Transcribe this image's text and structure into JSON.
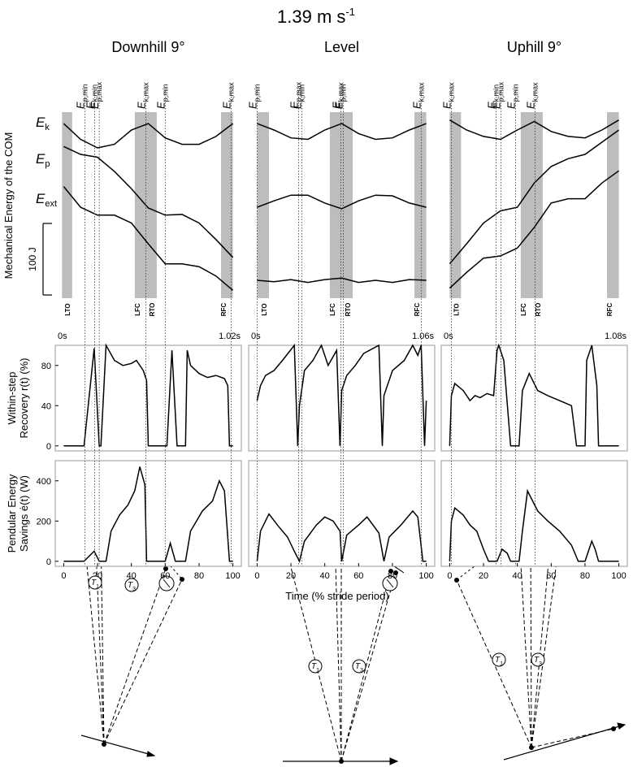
{
  "figure": {
    "title": {
      "text": "1.39 m s",
      "sup": "-1"
    },
    "y_label_energy": "Mechanical Energy of the COM",
    "y_label_recovery": [
      "Within-step",
      "Recovery r(t) (%)"
    ],
    "y_label_savings": [
      "Pendular Energy",
      "Savings ė(t) (W)"
    ],
    "x_label": "Time (% stride period)",
    "energy_labels": [
      {
        "symbol": "E",
        "sub": "k"
      },
      {
        "symbol": "E",
        "sub": "p"
      },
      {
        "symbol": "E",
        "sub": "ext"
      }
    ],
    "scale_bar": {
      "value": 100,
      "label": "100 J"
    }
  },
  "chart_data": [
    {
      "type": "energy",
      "title": "Downhill 9°",
      "xlim": [
        -5,
        105
      ],
      "ylim": [
        0,
        260
      ],
      "x": [
        0,
        10,
        20,
        30,
        40,
        50,
        60,
        70,
        80,
        90,
        100
      ],
      "series": [
        {
          "color": "#000000",
          "values": [
            244,
            222,
            210,
            215,
            235,
            244,
            224,
            215,
            215,
            226,
            244
          ]
        },
        {
          "color": "#000000",
          "values": [
            212,
            201,
            197,
            177,
            153,
            126,
            116,
            117,
            105,
            82,
            57
          ]
        },
        {
          "color": "#000000",
          "values": [
            156,
            127,
            116,
            116,
            105,
            76,
            48,
            48,
            44,
            31,
            11
          ]
        }
      ],
      "shading": [
        [
          -1,
          5
        ],
        [
          42,
          55
        ],
        [
          93,
          100
        ]
      ],
      "shade_color": "#bdbdbd",
      "gait_labels": [
        "LTO",
        "LFC",
        "RTO",
        "RFC"
      ],
      "events": [
        {
          "symbol": "E",
          "sub": "p,min",
          "x": 12.5
        },
        {
          "symbol": "E",
          "sub": "k,min",
          "x": 18.3
        },
        {
          "symbol": "E",
          "sub": "p,max",
          "x": 21
        },
        {
          "symbol": "E",
          "sub": "k,max",
          "x": 48.6
        },
        {
          "symbol": "E",
          "sub": "p,min",
          "x": 60
        },
        {
          "symbol": "E",
          "sub": "k,max",
          "x": 99
        }
      ]
    },
    {
      "type": "line",
      "time_start": "0s",
      "time_end": "1.02s",
      "xlim": [
        -5,
        105
      ],
      "ylim": [
        -5,
        100
      ],
      "yticks": [
        0,
        40,
        80
      ],
      "color": "#000000",
      "x": [
        0,
        12,
        18,
        21,
        22,
        25,
        30,
        35,
        40,
        43,
        47,
        49,
        50,
        61,
        64,
        67,
        72,
        73,
        75,
        80,
        85,
        90,
        95,
        97,
        98,
        100
      ],
      "values": [
        0,
        0,
        97,
        0,
        0,
        100,
        85,
        80,
        82,
        85,
        75,
        65,
        0,
        0,
        95,
        0,
        0,
        95,
        80,
        72,
        68,
        70,
        67,
        60,
        0,
        0
      ]
    },
    {
      "type": "line",
      "xlim": [
        -5,
        105
      ],
      "ylim": [
        -25,
        500
      ],
      "yticks": [
        0,
        200,
        400
      ],
      "xticks": [
        0,
        20,
        40,
        60,
        80,
        100
      ],
      "color": "#000000",
      "x": [
        0,
        12,
        18,
        21,
        25,
        28,
        33,
        38,
        42,
        45,
        48,
        49,
        60,
        63,
        66,
        72,
        75,
        82,
        88,
        92,
        95,
        98,
        100
      ],
      "values": [
        0,
        0,
        50,
        0,
        0,
        150,
        230,
        280,
        350,
        470,
        380,
        0,
        0,
        90,
        0,
        0,
        150,
        250,
        300,
        400,
        350,
        0,
        0
      ]
    },
    {
      "type": "energy",
      "title": "Level",
      "xlim": [
        -5,
        105
      ],
      "ylim": [
        0,
        260
      ],
      "x": [
        0,
        10,
        20,
        30,
        40,
        50,
        60,
        70,
        80,
        90,
        100
      ],
      "series": [
        {
          "color": "#000000",
          "values": [
            244,
            235,
            224,
            222,
            235,
            244,
            230,
            222,
            224,
            235,
            244
          ]
        },
        {
          "color": "#000000",
          "values": [
            127,
            136,
            144,
            144,
            133,
            125,
            136,
            144,
            143,
            133,
            127
          ]
        },
        {
          "color": "#000000",
          "values": [
            25,
            23,
            26,
            22,
            26,
            28,
            22,
            25,
            22,
            26,
            25
          ]
        }
      ],
      "shading": [
        [
          0,
          7
        ],
        [
          43,
          56.5
        ],
        [
          93,
          100
        ]
      ],
      "shade_color": "#bdbdbd",
      "gait_labels": [
        "LTO",
        "LFC",
        "RTO",
        "RFC"
      ],
      "events": [
        {
          "symbol": "E",
          "sub": "p,min",
          "x": 0
        },
        {
          "symbol": "E",
          "sub": "p,max",
          "x": 24.5
        },
        {
          "symbol": "E",
          "sub": "k,min",
          "x": 26.4
        },
        {
          "symbol": "E",
          "sub": "k,max",
          "x": 49.5
        },
        {
          "symbol": "E",
          "sub": "p,min",
          "x": 51
        },
        {
          "symbol": "E",
          "sub": "k,max",
          "x": 97
        }
      ]
    },
    {
      "type": "line",
      "time_start": "0s",
      "time_end": "1.06s",
      "xlim": [
        -5,
        105
      ],
      "ylim": [
        -5,
        100
      ],
      "color": "#000000",
      "x": [
        0,
        2,
        5,
        10,
        15,
        22,
        24,
        25,
        28,
        33,
        38,
        42,
        47,
        49,
        50,
        53,
        58,
        63,
        72,
        74,
        75,
        80,
        87,
        92,
        95,
        97,
        99,
        100
      ],
      "values": [
        45,
        60,
        70,
        75,
        85,
        100,
        0,
        40,
        75,
        85,
        100,
        80,
        95,
        0,
        55,
        70,
        80,
        92,
        100,
        0,
        50,
        75,
        85,
        100,
        90,
        100,
        0,
        45
      ]
    },
    {
      "type": "line",
      "xlim": [
        -5,
        105
      ],
      "ylim": [
        -25,
        500
      ],
      "xticks": [
        0,
        20,
        40,
        60,
        80,
        100
      ],
      "color": "#000000",
      "x": [
        0,
        2,
        7,
        12,
        18,
        22,
        25,
        28,
        35,
        40,
        45,
        49,
        50,
        53,
        60,
        65,
        72,
        75,
        78,
        85,
        92,
        95,
        98,
        100
      ],
      "values": [
        0,
        150,
        235,
        180,
        120,
        50,
        0,
        100,
        180,
        220,
        200,
        150,
        0,
        130,
        180,
        220,
        140,
        0,
        120,
        180,
        250,
        220,
        0,
        0
      ]
    },
    {
      "type": "energy",
      "title": "Uphill 9°",
      "xlim": [
        -5,
        105
      ],
      "ylim": [
        0,
        260
      ],
      "x": [
        0,
        10,
        20,
        30,
        40,
        50,
        60,
        70,
        80,
        90,
        100
      ],
      "series": [
        {
          "color": "#000000",
          "values": [
            249,
            235,
            226,
            222,
            235,
            247,
            233,
            226,
            224,
            235,
            249
          ]
        },
        {
          "color": "#000000",
          "values": [
            48,
            76,
            105,
            122,
            127,
            161,
            184,
            195,
            201,
            218,
            235
          ]
        },
        {
          "color": "#000000",
          "values": [
            14,
            36,
            56,
            59,
            70,
            99,
            133,
            139,
            139,
            161,
            178
          ]
        }
      ],
      "shading": [
        [
          0,
          6.7
        ],
        [
          42,
          55
        ],
        [
          93,
          100
        ]
      ],
      "shade_color": "#bdbdbd",
      "gait_labels": [
        "LTO",
        "LFC",
        "RTO",
        "RFC"
      ],
      "events": [
        {
          "symbol": "E",
          "sub": "k,max",
          "x": 1
        },
        {
          "symbol": "E",
          "sub": "k,min",
          "x": 27.4
        },
        {
          "symbol": "E",
          "sub": "p,max",
          "x": 30.3
        },
        {
          "symbol": "E",
          "sub": "p,min",
          "x": 39
        },
        {
          "symbol": "E",
          "sub": "k,max",
          "x": 50.5
        }
      ]
    },
    {
      "type": "line",
      "time_start": "0s",
      "time_end": "1.08s",
      "xlim": [
        -5,
        105
      ],
      "ylim": [
        -5,
        100
      ],
      "color": "#000000",
      "x": [
        0,
        1,
        3,
        8,
        12,
        15,
        18,
        22,
        26,
        28,
        29,
        32,
        36,
        41,
        43,
        47,
        52,
        58,
        65,
        72,
        75,
        80,
        81,
        84,
        87,
        88,
        100
      ],
      "values": [
        0,
        50,
        62,
        55,
        45,
        50,
        48,
        52,
        50,
        95,
        100,
        85,
        0,
        0,
        55,
        72,
        55,
        50,
        45,
        40,
        0,
        0,
        85,
        100,
        60,
        0,
        0
      ]
    },
    {
      "type": "line",
      "xlim": [
        -5,
        105
      ],
      "ylim": [
        -25,
        500
      ],
      "xticks": [
        0,
        20,
        40,
        60,
        80,
        100
      ],
      "color": "#000000",
      "x": [
        0,
        1,
        3,
        8,
        12,
        16,
        20,
        23,
        28,
        31,
        34,
        36,
        41,
        43,
        46,
        52,
        58,
        65,
        72,
        76,
        80,
        84,
        86,
        88,
        100
      ],
      "values": [
        0,
        200,
        265,
        230,
        180,
        150,
        60,
        0,
        0,
        60,
        40,
        0,
        0,
        150,
        350,
        250,
        200,
        150,
        80,
        0,
        0,
        100,
        60,
        0,
        0
      ]
    }
  ],
  "pendulum_labels": [
    [
      {
        "symbol": "T",
        "sub": "1"
      },
      {
        "symbol": "T",
        "sub": "3"
      }
    ],
    [
      {
        "symbol": "T",
        "sub": "1"
      },
      {
        "symbol": "T",
        "sub": "3"
      }
    ],
    [
      {
        "symbol": "T",
        "sub": "1"
      },
      {
        "symbol": "T",
        "sub": "3"
      }
    ]
  ]
}
